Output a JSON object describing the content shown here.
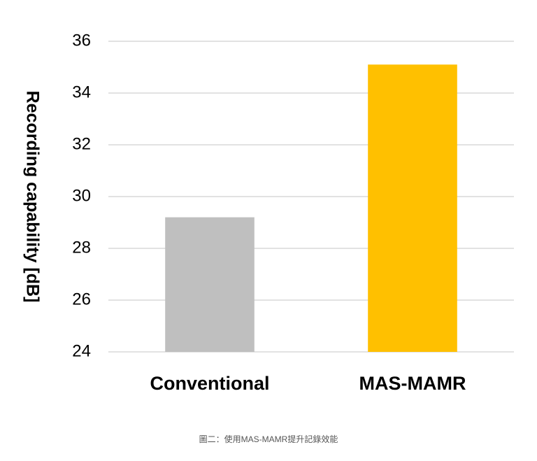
{
  "chart_data": {
    "type": "bar",
    "y_label": "Recording capability [dB]",
    "categories": [
      "Conventional",
      "MAS-MAMR"
    ],
    "values": [
      29.2,
      35.1
    ],
    "colors": [
      "#bfbfbf",
      "#ffc000"
    ],
    "ylim": [
      24,
      36
    ],
    "yticks": [
      24,
      26,
      28,
      30,
      32,
      34,
      36
    ],
    "grid": true
  },
  "caption": "圖二：使用MAS-MAMR提升記錄效能"
}
